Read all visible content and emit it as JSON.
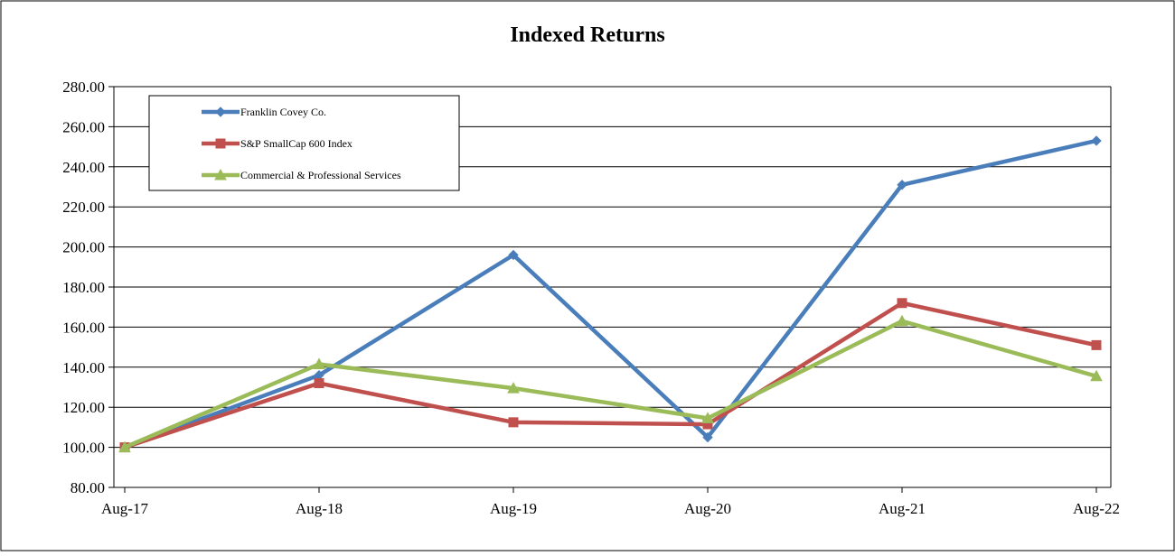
{
  "chart_data": {
    "type": "line",
    "title": "Indexed Returns",
    "xlabel": "",
    "ylabel": "",
    "categories": [
      "Aug-17",
      "Aug-18",
      "Aug-19",
      "Aug-20",
      "Aug-21",
      "Aug-22"
    ],
    "ylim": [
      80,
      280
    ],
    "yticks": [
      "80.00",
      "100.00",
      "120.00",
      "140.00",
      "160.00",
      "180.00",
      "200.00",
      "220.00",
      "240.00",
      "260.00",
      "280.00"
    ],
    "grid": true,
    "legend_position": "top-left",
    "series": [
      {
        "name": "Franklin Covey Co.",
        "color": "#4a7ebb",
        "marker": "diamond",
        "values": [
          100.0,
          136.0,
          196.0,
          105.0,
          231.0,
          253.0
        ]
      },
      {
        "name": "S&P SmallCap 600 Index",
        "color": "#c0504d",
        "marker": "square",
        "values": [
          100.0,
          132.0,
          112.5,
          111.5,
          172.0,
          151.0
        ]
      },
      {
        "name": "Commercial & Professional Services",
        "color": "#9bbb59",
        "marker": "triangle",
        "values": [
          100.0,
          141.5,
          129.5,
          114.5,
          163.0,
          135.5
        ]
      }
    ]
  }
}
